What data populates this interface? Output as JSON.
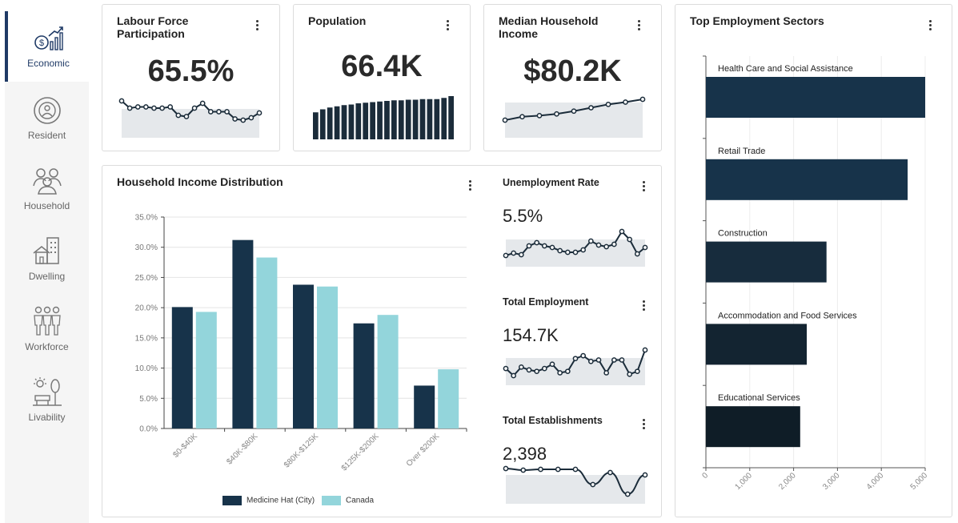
{
  "nav": [
    {
      "label": "Economic",
      "icon": "economic-icon",
      "active": true
    },
    {
      "label": "Resident",
      "icon": "resident-icon",
      "active": false
    },
    {
      "label": "Household",
      "icon": "household-icon",
      "active": false
    },
    {
      "label": "Dwelling",
      "icon": "dwelling-icon",
      "active": false
    },
    {
      "label": "Workforce",
      "icon": "workforce-icon",
      "active": false
    },
    {
      "label": "Livability",
      "icon": "livability-icon",
      "active": false
    }
  ],
  "kpis": {
    "labour": {
      "title": "Labour Force Participation",
      "value": "65.5%"
    },
    "population": {
      "title": "Population",
      "value": "66.4K"
    },
    "income": {
      "title": "Median Household Income",
      "value": "$80.2K"
    }
  },
  "side_kpis": {
    "unemployment": {
      "title": "Unemployment Rate",
      "value": "5.5%"
    },
    "employment": {
      "title": "Total Employment",
      "value": "154.7K"
    },
    "establishments": {
      "title": "Total Establishments",
      "value": "2,398"
    }
  },
  "chart_data": [
    {
      "type": "bar",
      "title": "Household Income Distribution",
      "categories": [
        "$0-$40K",
        "$40K-$80K",
        "$80K-$125K",
        "$125K-$200K",
        "Over $200K"
      ],
      "series": [
        {
          "name": "Medicine Hat (City)",
          "color": "#17334a",
          "values": [
            20.1,
            31.2,
            23.8,
            17.4,
            7.1
          ]
        },
        {
          "name": "Canada",
          "color": "#93d5db",
          "values": [
            19.3,
            28.3,
            23.5,
            18.8,
            9.8
          ]
        }
      ],
      "yticks": [
        "0.0%",
        "5.0%",
        "10.0%",
        "15.0%",
        "20.0%",
        "25.0%",
        "30.0%",
        "35.0%"
      ],
      "ylim": [
        0,
        35
      ],
      "grid": true,
      "legend": "bottom"
    },
    {
      "type": "bar",
      "orientation": "horizontal",
      "title": "Top Employment Sectors",
      "categories": [
        "Health Care and Social Assistance",
        "Retail Trade",
        "Construction",
        "Accommodation and Food Services",
        "Educational Services"
      ],
      "values": [
        5000,
        4600,
        2750,
        2300,
        2150
      ],
      "colors": [
        "#17334a",
        "#17334a",
        "#172c3d",
        "#132431",
        "#0f1d27"
      ],
      "xticks": [
        "0",
        "1,000",
        "2,000",
        "3,000",
        "4,000",
        "5,000"
      ],
      "xlim": [
        0,
        5000
      ],
      "grid": true
    }
  ],
  "sparklines": {
    "labour": [
      60,
      54,
      55,
      55,
      54,
      54,
      55,
      48,
      47,
      54,
      58,
      51,
      51,
      51,
      45,
      44,
      46,
      50
    ],
    "population": [
      45,
      50,
      53,
      55,
      57,
      58,
      60,
      61,
      62,
      63,
      64,
      65,
      65,
      66,
      66,
      67,
      67,
      67,
      69,
      72
    ],
    "income": [
      30,
      36,
      38,
      41,
      46,
      52,
      58,
      62,
      67
    ],
    "unemployment": [
      30,
      33,
      31,
      42,
      46,
      42,
      40,
      36,
      34,
      34,
      37,
      48,
      43,
      41,
      44,
      60,
      50,
      32,
      40
    ],
    "employment": [
      45,
      40,
      46,
      44,
      43,
      45,
      48,
      42,
      43,
      52,
      54,
      50,
      51,
      42,
      51,
      51,
      41,
      43,
      58
    ],
    "establishments": [
      58,
      56,
      57,
      57,
      57,
      38,
      53,
      26,
      50
    ]
  }
}
